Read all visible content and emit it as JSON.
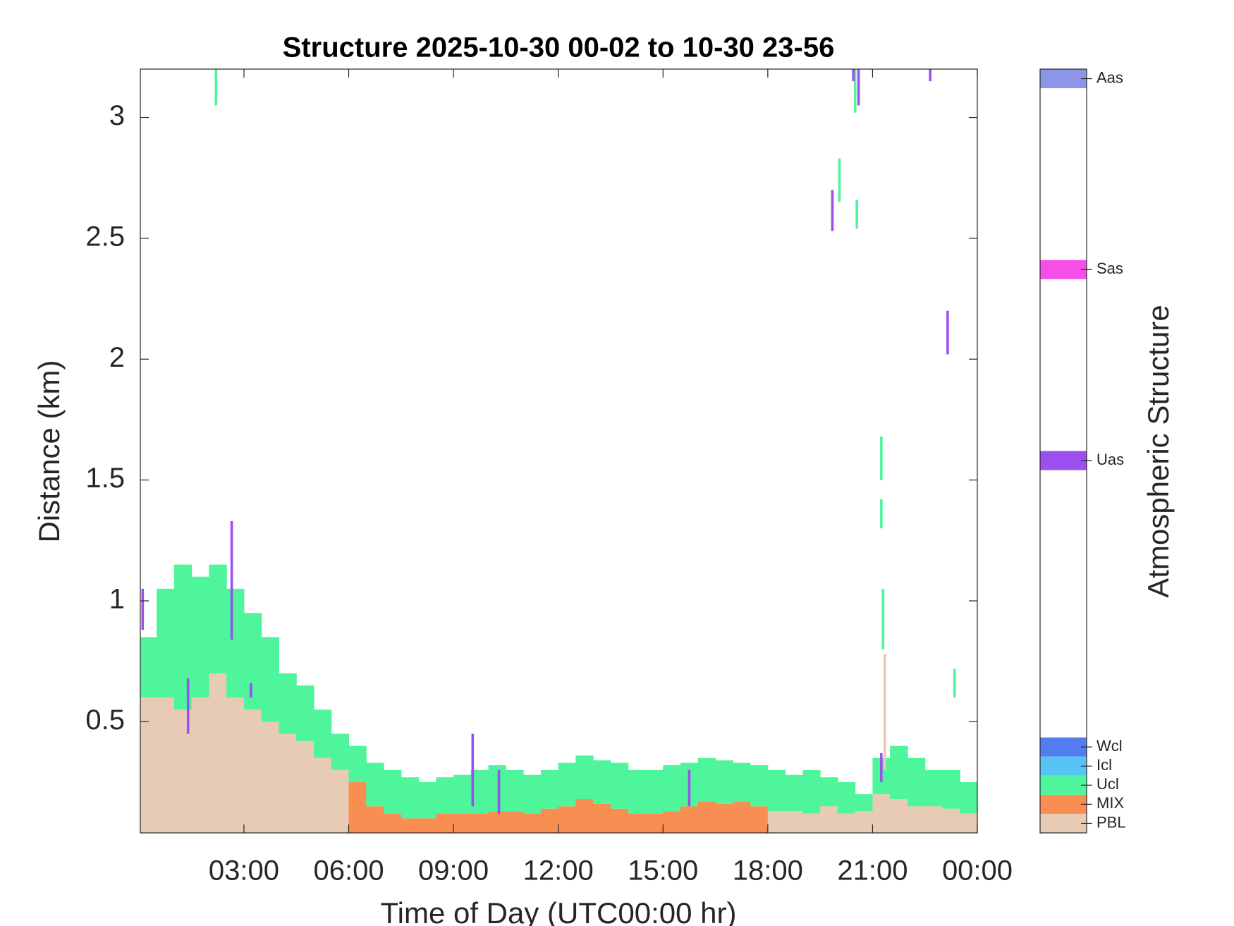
{
  "chart_data": {
    "type": "structure",
    "title": "Structure 2025-10-30 00-02 to 10-30 23-56",
    "xlabel": "Time of Day (UTC00:00 hr)",
    "ylabel": "Distance (km)",
    "colorbar_label": "Atmospheric Structure",
    "xlim": [
      0.033,
      24
    ],
    "ylim": [
      0.04,
      3.2
    ],
    "xticks": [
      {
        "value": 3,
        "label": "03:00"
      },
      {
        "value": 6,
        "label": "06:00"
      },
      {
        "value": 9,
        "label": "09:00"
      },
      {
        "value": 12,
        "label": "12:00"
      },
      {
        "value": 15,
        "label": "15:00"
      },
      {
        "value": 18,
        "label": "18:00"
      },
      {
        "value": 21,
        "label": "21:00"
      },
      {
        "value": 24,
        "label": "00:00"
      }
    ],
    "yticks": [
      0.5,
      1,
      1.5,
      2,
      2.5,
      3
    ],
    "clim": [
      0.5,
      40.5
    ],
    "x": [
      0.25,
      0.75,
      1.25,
      1.75,
      2.25,
      2.75,
      3.25,
      3.75,
      4.25,
      4.75,
      5.25,
      5.75,
      6.25,
      6.75,
      7.25,
      7.75,
      8.25,
      8.75,
      9.25,
      9.75,
      10.25,
      10.75,
      11.25,
      11.75,
      12.25,
      12.75,
      13.25,
      13.75,
      14.25,
      14.75,
      15.25,
      15.75,
      16.25,
      16.75,
      17.25,
      17.75,
      18.25,
      18.75,
      19.25,
      19.75,
      20.25,
      20.75,
      21.25,
      21.75,
      22.25,
      22.75,
      23.25,
      23.75
    ],
    "series": [
      {
        "name": "PBL",
        "color": "#e8cbb4",
        "cbar_value": 1,
        "values": [
          0.6,
          0.6,
          0.55,
          0.6,
          0.7,
          0.6,
          0.55,
          0.5,
          0.45,
          0.42,
          0.35,
          0.3,
          null,
          null,
          null,
          null,
          null,
          null,
          null,
          null,
          null,
          null,
          null,
          null,
          null,
          null,
          null,
          null,
          null,
          null,
          null,
          null,
          null,
          null,
          null,
          null,
          0.13,
          0.13,
          0.12,
          0.15,
          0.12,
          0.13,
          0.2,
          0.18,
          0.15,
          0.15,
          0.14,
          0.12
        ],
        "streaks": {
          "x": [
            21.35
          ],
          "bottom": [
            0.3
          ],
          "top": [
            0.78
          ]
        }
      },
      {
        "name": "MIX",
        "color": "#f98e52",
        "cbar_value": 2,
        "values": [
          null,
          null,
          null,
          null,
          null,
          null,
          null,
          null,
          null,
          null,
          null,
          null,
          0.25,
          0.15,
          0.12,
          0.1,
          0.1,
          0.12,
          0.12,
          0.12,
          0.13,
          0.13,
          0.12,
          0.14,
          0.15,
          0.18,
          0.16,
          0.14,
          0.12,
          0.12,
          0.13,
          0.15,
          0.17,
          0.16,
          0.17,
          0.15,
          null,
          null,
          null,
          null,
          null,
          null,
          null,
          null,
          null,
          null,
          null,
          null
        ]
      },
      {
        "name": "Ucl",
        "color": "#4ef59a",
        "cbar_value": 3,
        "values": [
          0.85,
          1.05,
          1.15,
          1.1,
          1.15,
          1.05,
          0.95,
          0.85,
          0.7,
          0.65,
          0.55,
          0.45,
          0.4,
          0.33,
          0.3,
          0.27,
          0.25,
          0.27,
          0.28,
          0.3,
          0.32,
          0.3,
          0.28,
          0.3,
          0.33,
          0.36,
          0.34,
          0.33,
          0.3,
          0.3,
          0.32,
          0.33,
          0.35,
          0.34,
          0.33,
          0.32,
          0.3,
          0.28,
          0.3,
          0.27,
          0.25,
          0.2,
          0.35,
          0.4,
          0.35,
          0.3,
          0.3,
          0.25
        ],
        "streaks": {
          "x": [
            2.2,
            20.05,
            20.55,
            20.5,
            21.25,
            21.25,
            21.3,
            23.35
          ],
          "bottom": [
            3.05,
            2.65,
            2.54,
            3.02,
            1.5,
            1.3,
            0.8,
            0.6
          ],
          "top": [
            3.2,
            2.83,
            2.66,
            3.2,
            1.68,
            1.42,
            1.05,
            0.72
          ]
        }
      },
      {
        "name": "Icl",
        "color": "#56c4f5",
        "cbar_value": 4
      },
      {
        "name": "Wcl",
        "color": "#527cf0",
        "cbar_value": 5
      },
      {
        "name": "Uas",
        "color": "#9b4ff0",
        "cbar_value": 20,
        "streaks": {
          "x": [
            0.1,
            1.4,
            2.65,
            3.2,
            9.55,
            10.3,
            15.75,
            19.85,
            20.6,
            20.45,
            21.25,
            22.65,
            23.15
          ],
          "bottom": [
            0.88,
            0.45,
            0.84,
            0.6,
            0.15,
            0.12,
            0.15,
            2.53,
            3.05,
            3.15,
            0.25,
            3.15,
            2.02
          ],
          "top": [
            1.05,
            0.68,
            1.33,
            0.66,
            0.45,
            0.3,
            0.3,
            2.7,
            3.2,
            3.2,
            0.37,
            3.2,
            2.2
          ]
        }
      },
      {
        "name": "Sas",
        "color": "#f54fe8",
        "cbar_value": 30
      },
      {
        "name": "Aas",
        "color": "#8c95e6",
        "cbar_value": 40
      }
    ]
  }
}
